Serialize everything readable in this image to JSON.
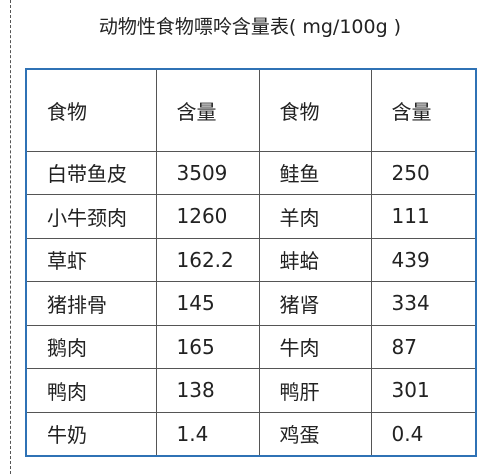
{
  "title": "动物性食物嘌呤含量表( mg/100g )",
  "table": {
    "header": [
      "食物",
      "含量",
      "食物",
      "含量"
    ],
    "rows": [
      [
        "白带鱼皮",
        "3509",
        "鲑鱼",
        "250"
      ],
      [
        "小牛颈肉",
        "1260",
        "羊肉",
        "111"
      ],
      [
        "草虾",
        "162.2",
        "蚌蛤",
        "439"
      ],
      [
        "猪排骨",
        "145",
        "猪肾",
        "334"
      ],
      [
        "鹅肉",
        "165",
        "牛肉",
        "87"
      ],
      [
        "鸭肉",
        "138",
        "鸭肝",
        "301"
      ],
      [
        "牛奶",
        "1.4",
        "鸡蛋",
        "0.4"
      ]
    ]
  }
}
